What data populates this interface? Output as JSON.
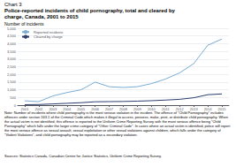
{
  "chart_data": {
    "type": "line",
    "title": "Chart 3",
    "subtitle": [
      "Police-reported incidents of child pornography, total and cleared by",
      "charge, Canada, 2001 to 2015"
    ],
    "ylabel": "Number of incidents",
    "x": [
      2001,
      2002,
      2003,
      2004,
      2005,
      2006,
      2007,
      2008,
      2009,
      2010,
      2011,
      2012,
      2013,
      2014,
      2015
    ],
    "series": [
      {
        "name": "Reported incidents",
        "color": "#7aadd4",
        "values": [
          280,
          230,
          600,
          820,
          1000,
          1500,
          1200,
          1150,
          1200,
          1400,
          1700,
          2100,
          2700,
          3900,
          4300
        ]
      },
      {
        "name": "Cleared by charge",
        "color": "#2c3e6e",
        "values": [
          30,
          40,
          80,
          120,
          160,
          220,
          230,
          240,
          260,
          290,
          330,
          380,
          480,
          680,
          730
        ]
      }
    ],
    "xlim": [
      2000.5,
      2015.5
    ],
    "xticks": [
      2001,
      2002,
      2003,
      2004,
      2005,
      2006,
      2007,
      2008,
      2009,
      2010,
      2011,
      2012,
      2013,
      2014,
      2015
    ],
    "ylim": [
      0,
      5000
    ],
    "yticks": [
      0,
      500,
      {
        "value": 1000,
        "label": "1,000"
      },
      {
        "value": 1500,
        "label": "1,500"
      },
      {
        "value": 2000,
        "label": "2,000"
      },
      {
        "value": 2500,
        "label": "2,500"
      },
      {
        "value": 3000,
        "label": "3,000"
      },
      {
        "value": 3500,
        "label": "3,500"
      },
      {
        "value": 4000,
        "label": "4,000"
      },
      {
        "value": 4500,
        "label": "4,500"
      },
      {
        "value": 5000,
        "label": "5,000"
      }
    ],
    "grid": true,
    "legend": "upper left",
    "annotations": [
      "Note: Number of incidents where child pornography is the most serious violation in the incident. The offence of \"Child Pornography\" includes offences under section 163.1 of the Criminal Code which makes it illegal to access, possess, make, print, or distribute child pornography. When the actual victim is not identified, this offence is reported to the Uniform Crime Reporting Survey with the most serious offence being \"Child Pornography\" which falls under the larger crime category of \"Other Criminal Code\". In cases where an actual victim is identified, police will report the most serious offence as sexual assault, sexual exploitation or other sexual violations against children, which falls under the category of \"Violent Violations\", and child pornography may be reported as a secondary violation.",
      "Sources: Statistics Canada, Canadian Centre for Justice Statistics, Uniform Crime Reporting Survey."
    ]
  }
}
